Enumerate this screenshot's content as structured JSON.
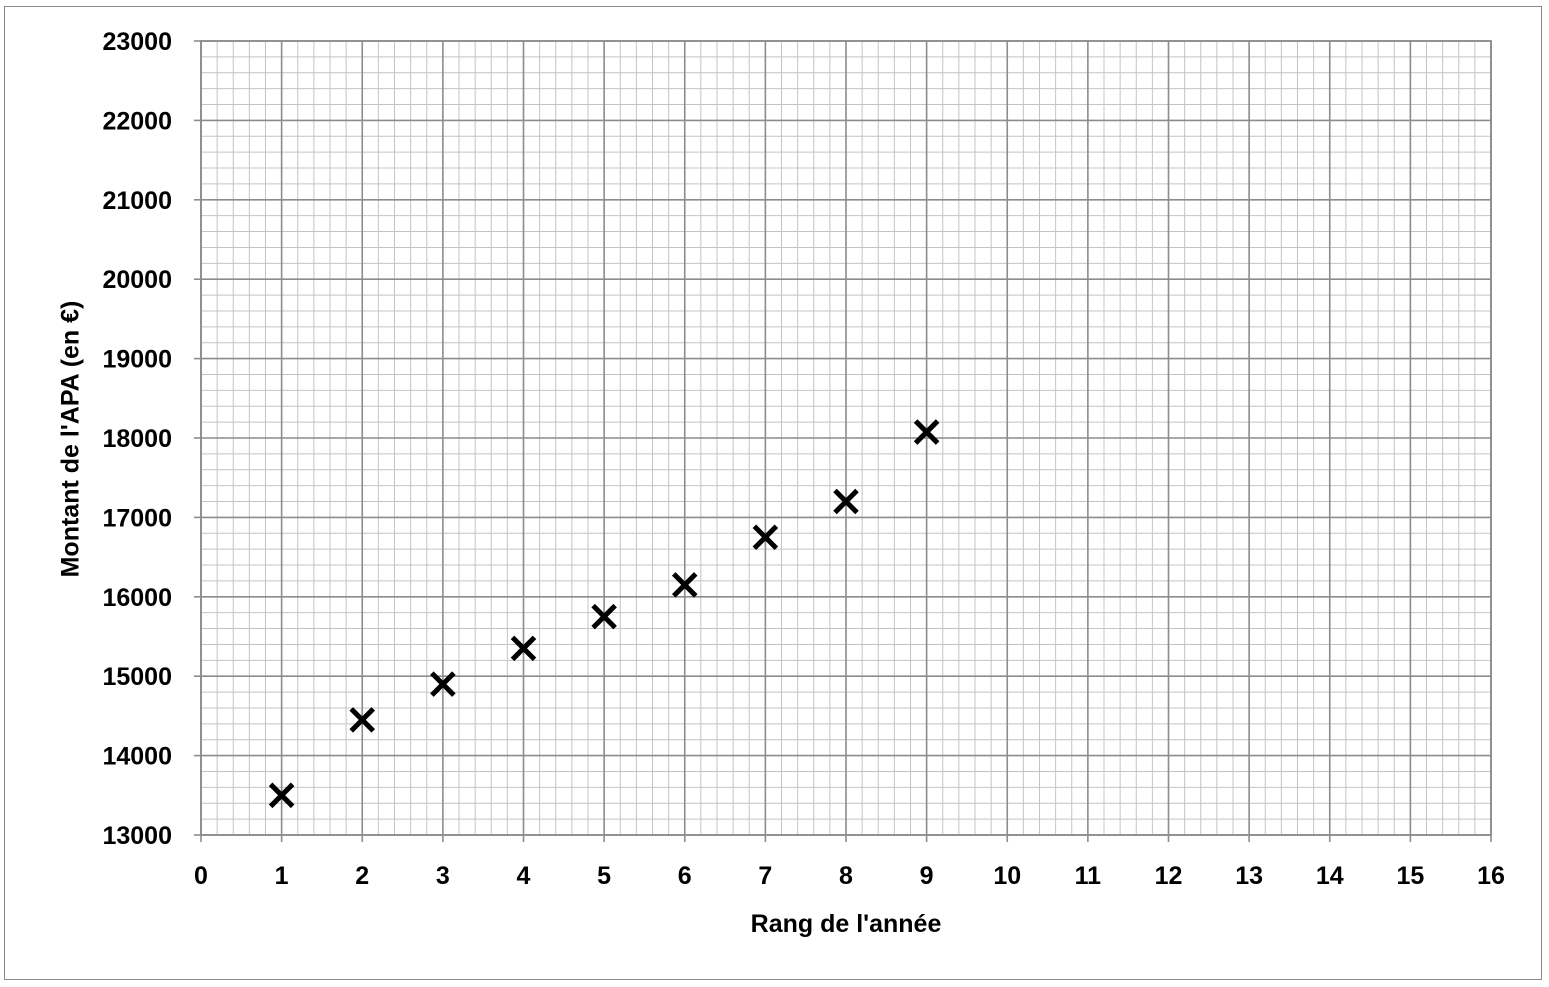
{
  "chart_data": {
    "type": "scatter",
    "title": "",
    "xlabel": "Rang de l'année",
    "ylabel": "Montant de l'APA (en €)",
    "xlim": [
      0,
      16
    ],
    "ylim": [
      13000,
      23000
    ],
    "x_ticks": [
      "0",
      "1",
      "2",
      "3",
      "4",
      "5",
      "6",
      "7",
      "8",
      "9",
      "10",
      "11",
      "12",
      "13",
      "14",
      "15",
      "16"
    ],
    "y_ticks": [
      "13000",
      "14000",
      "15000",
      "16000",
      "17000",
      "18000",
      "19000",
      "20000",
      "21000",
      "22000",
      "23000"
    ],
    "grid": true,
    "minor_grid": true,
    "marker": "x",
    "colors": {
      "marker": "#000000",
      "major_grid": "#8c8c8c",
      "minor_grid": "#c4c4c4",
      "frame": "#8a8a8a"
    },
    "series": [
      {
        "x": [
          1,
          2,
          3,
          4,
          5,
          6,
          7,
          8,
          9
        ],
        "y": [
          13500,
          14450,
          14900,
          15350,
          15750,
          16150,
          16750,
          17200,
          18075
        ]
      }
    ]
  }
}
